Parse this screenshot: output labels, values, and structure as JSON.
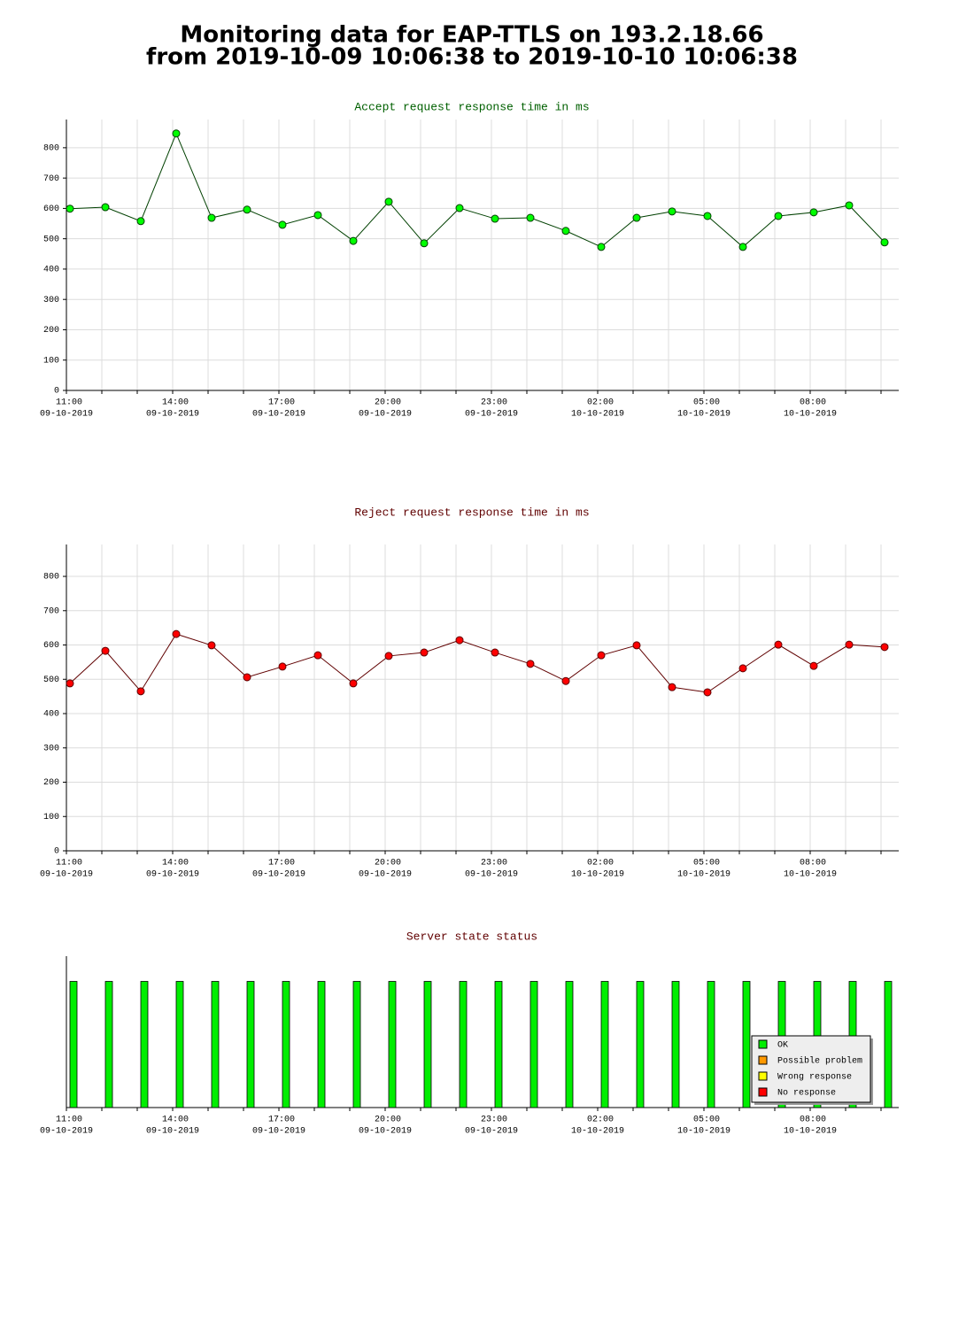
{
  "header": {
    "title": [
      "Monitoring data for EAP-TTLS on 193.2.18.66",
      "from 2019-10-09 10:06:38 to 2019-10-10 10:06:38"
    ]
  },
  "chart_data": [
    {
      "type": "line",
      "title": "Accept request response time in ms",
      "title_color": "#006000",
      "x": [
        "09-10-2019 11:06",
        "09-10-2019 12:06",
        "09-10-2019 13:06",
        "09-10-2019 14:06",
        "09-10-2019 15:06",
        "09-10-2019 16:06",
        "09-10-2019 17:06",
        "09-10-2019 18:06",
        "09-10-2019 19:06",
        "09-10-2019 20:06",
        "09-10-2019 21:06",
        "09-10-2019 22:06",
        "09-10-2019 23:06",
        "10-10-2019 00:06",
        "10-10-2019 01:06",
        "10-10-2019 02:06",
        "10-10-2019 03:06",
        "10-10-2019 04:06",
        "10-10-2019 05:06",
        "10-10-2019 06:06",
        "10-10-2019 07:06",
        "10-10-2019 08:06",
        "10-10-2019 09:06",
        "10-10-2019 10:06"
      ],
      "series": [
        {
          "name": "Accept",
          "color": "#004000",
          "marker_color": "#00ff00",
          "values": [
            599,
            604,
            558,
            847,
            569,
            596,
            546,
            578,
            493,
            622,
            485,
            601,
            566,
            569,
            526,
            473,
            569,
            590,
            575,
            473,
            575,
            587,
            610,
            488
          ]
        }
      ],
      "xlim": [
        "09-10-2019 11:00",
        "10-10-2019 10:30"
      ],
      "xticks": [
        {
          "value": "09-10-2019 11:00",
          "label": [
            "11:00",
            "09-10-2019"
          ]
        },
        {
          "value": "09-10-2019 14:00",
          "label": [
            "14:00",
            "09-10-2019"
          ]
        },
        {
          "value": "09-10-2019 17:00",
          "label": [
            "17:00",
            "09-10-2019"
          ]
        },
        {
          "value": "09-10-2019 20:00",
          "label": [
            "20:00",
            "09-10-2019"
          ]
        },
        {
          "value": "09-10-2019 23:00",
          "label": [
            "23:00",
            "09-10-2019"
          ]
        },
        {
          "value": "10-10-2019 02:00",
          "label": [
            "02:00",
            "10-10-2019"
          ]
        },
        {
          "value": "10-10-2019 05:00",
          "label": [
            "05:00",
            "10-10-2019"
          ]
        },
        {
          "value": "10-10-2019 08:00",
          "label": [
            "08:00",
            "10-10-2019"
          ]
        }
      ],
      "xminor": [
        "09-10-2019 12:00",
        "09-10-2019 13:00",
        "09-10-2019 15:00",
        "09-10-2019 16:00",
        "09-10-2019 18:00",
        "09-10-2019 19:00",
        "09-10-2019 21:00",
        "09-10-2019 22:00",
        "10-10-2019 00:00",
        "10-10-2019 01:00",
        "10-10-2019 03:00",
        "10-10-2019 04:00",
        "10-10-2019 06:00",
        "10-10-2019 07:00",
        "10-10-2019 09:00",
        "10-10-2019 10:00"
      ],
      "ylim": [
        0,
        893
      ],
      "yticks": [
        0,
        100,
        200,
        300,
        400,
        500,
        600,
        700,
        800
      ],
      "grid": true
    },
    {
      "type": "line",
      "title": "Reject request response time in ms",
      "title_color": "#600000",
      "x": [
        "09-10-2019 11:06",
        "09-10-2019 12:06",
        "09-10-2019 13:06",
        "09-10-2019 14:06",
        "09-10-2019 15:06",
        "09-10-2019 16:06",
        "09-10-2019 17:06",
        "09-10-2019 18:06",
        "09-10-2019 19:06",
        "09-10-2019 20:06",
        "09-10-2019 21:06",
        "09-10-2019 22:06",
        "09-10-2019 23:06",
        "10-10-2019 00:06",
        "10-10-2019 01:06",
        "10-10-2019 02:06",
        "10-10-2019 03:06",
        "10-10-2019 04:06",
        "10-10-2019 05:06",
        "10-10-2019 06:06",
        "10-10-2019 07:06",
        "10-10-2019 08:06",
        "10-10-2019 09:06",
        "10-10-2019 10:06"
      ],
      "series": [
        {
          "name": "Reject",
          "color": "#600000",
          "marker_color": "#ff0000",
          "values": [
            488,
            583,
            465,
            632,
            599,
            506,
            537,
            570,
            488,
            568,
            578,
            614,
            578,
            545,
            495,
            570,
            599,
            477,
            462,
            532,
            601,
            539,
            601,
            594
          ]
        }
      ],
      "xlim": [
        "09-10-2019 11:00",
        "10-10-2019 10:30"
      ],
      "xticks": [
        {
          "value": "09-10-2019 11:00",
          "label": [
            "11:00",
            "09-10-2019"
          ]
        },
        {
          "value": "09-10-2019 14:00",
          "label": [
            "14:00",
            "09-10-2019"
          ]
        },
        {
          "value": "09-10-2019 17:00",
          "label": [
            "17:00",
            "09-10-2019"
          ]
        },
        {
          "value": "09-10-2019 20:00",
          "label": [
            "20:00",
            "09-10-2019"
          ]
        },
        {
          "value": "09-10-2019 23:00",
          "label": [
            "23:00",
            "09-10-2019"
          ]
        },
        {
          "value": "10-10-2019 02:00",
          "label": [
            "02:00",
            "10-10-2019"
          ]
        },
        {
          "value": "10-10-2019 05:00",
          "label": [
            "05:00",
            "10-10-2019"
          ]
        },
        {
          "value": "10-10-2019 08:00",
          "label": [
            "08:00",
            "10-10-2019"
          ]
        }
      ],
      "xminor": [
        "09-10-2019 12:00",
        "09-10-2019 13:00",
        "09-10-2019 15:00",
        "09-10-2019 16:00",
        "09-10-2019 18:00",
        "09-10-2019 19:00",
        "09-10-2019 21:00",
        "09-10-2019 22:00",
        "10-10-2019 00:00",
        "10-10-2019 01:00",
        "10-10-2019 03:00",
        "10-10-2019 04:00",
        "10-10-2019 06:00",
        "10-10-2019 07:00",
        "10-10-2019 09:00",
        "10-10-2019 10:00"
      ],
      "ylim": [
        0,
        893
      ],
      "yticks": [
        0,
        100,
        200,
        300,
        400,
        500,
        600,
        700,
        800
      ],
      "grid": true
    },
    {
      "type": "bar",
      "title": "Server state status",
      "title_color": "#600000",
      "x": [
        "09-10-2019 11:06",
        "09-10-2019 12:06",
        "09-10-2019 13:06",
        "09-10-2019 14:06",
        "09-10-2019 15:06",
        "09-10-2019 16:06",
        "09-10-2019 17:06",
        "09-10-2019 18:06",
        "09-10-2019 19:06",
        "09-10-2019 20:06",
        "09-10-2019 21:06",
        "09-10-2019 22:06",
        "09-10-2019 23:06",
        "10-10-2019 00:06",
        "10-10-2019 01:06",
        "10-10-2019 02:06",
        "10-10-2019 03:06",
        "10-10-2019 04:06",
        "10-10-2019 05:06",
        "10-10-2019 06:06",
        "10-10-2019 07:06",
        "10-10-2019 08:06",
        "10-10-2019 09:06",
        "10-10-2019 10:06"
      ],
      "series": [
        {
          "name": "OK",
          "color": "#00ee00",
          "values": [
            1,
            1,
            1,
            1,
            1,
            1,
            1,
            1,
            1,
            1,
            1,
            1,
            1,
            1,
            1,
            1,
            1,
            1,
            1,
            1,
            1,
            1,
            1,
            1
          ]
        },
        {
          "name": "Possible problem",
          "color": "#ff9900",
          "values": [
            null,
            null,
            null,
            null,
            null,
            null,
            null,
            null,
            null,
            null,
            null,
            null,
            null,
            null,
            null,
            null,
            null,
            null,
            null,
            null,
            null,
            null,
            null,
            null
          ]
        },
        {
          "name": "Wrong response",
          "color": "#ffff00",
          "values": [
            null,
            null,
            null,
            null,
            null,
            null,
            null,
            null,
            null,
            null,
            null,
            null,
            null,
            null,
            null,
            null,
            null,
            null,
            null,
            null,
            null,
            null,
            null,
            null
          ]
        },
        {
          "name": "No response",
          "color": "#ff0000",
          "values": [
            null,
            null,
            null,
            null,
            null,
            null,
            null,
            null,
            null,
            null,
            null,
            null,
            null,
            null,
            null,
            null,
            null,
            null,
            null,
            null,
            null,
            null,
            null,
            null
          ]
        }
      ],
      "xlim": [
        "09-10-2019 11:00",
        "10-10-2019 10:30"
      ],
      "xticks": [
        {
          "value": "09-10-2019 11:00",
          "label": [
            "11:00",
            "09-10-2019"
          ]
        },
        {
          "value": "09-10-2019 14:00",
          "label": [
            "14:00",
            "09-10-2019"
          ]
        },
        {
          "value": "09-10-2019 17:00",
          "label": [
            "17:00",
            "09-10-2019"
          ]
        },
        {
          "value": "09-10-2019 20:00",
          "label": [
            "20:00",
            "09-10-2019"
          ]
        },
        {
          "value": "09-10-2019 23:00",
          "label": [
            "23:00",
            "09-10-2019"
          ]
        },
        {
          "value": "10-10-2019 02:00",
          "label": [
            "02:00",
            "10-10-2019"
          ]
        },
        {
          "value": "10-10-2019 05:00",
          "label": [
            "05:00",
            "10-10-2019"
          ]
        },
        {
          "value": "10-10-2019 08:00",
          "label": [
            "08:00",
            "10-10-2019"
          ]
        }
      ],
      "xminor": [
        "09-10-2019 12:00",
        "09-10-2019 13:00",
        "09-10-2019 15:00",
        "09-10-2019 16:00",
        "09-10-2019 18:00",
        "09-10-2019 19:00",
        "09-10-2019 21:00",
        "09-10-2019 22:00",
        "10-10-2019 00:00",
        "10-10-2019 01:00",
        "10-10-2019 03:00",
        "10-10-2019 04:00",
        "10-10-2019 06:00",
        "10-10-2019 07:00",
        "10-10-2019 09:00",
        "10-10-2019 10:00"
      ],
      "ylim": [
        0,
        1.2
      ],
      "grid": false,
      "legend": "lower right"
    }
  ]
}
